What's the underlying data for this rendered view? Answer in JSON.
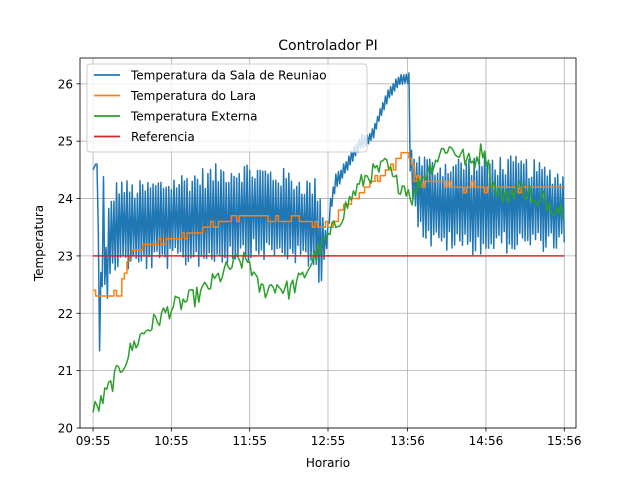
{
  "chart_data": {
    "type": "line",
    "title": "Controlador PI",
    "xlabel": "Horario",
    "ylabel": "Temperatura",
    "xlim": [
      -10,
      370
    ],
    "ylim": [
      20,
      26.45
    ],
    "grid": true,
    "legend_position": "top-left",
    "x_units": "minutes after 09:55",
    "xticks": [
      {
        "value": 0,
        "label": "09:55"
      },
      {
        "value": 60,
        "label": "10:55"
      },
      {
        "value": 120,
        "label": "11:55"
      },
      {
        "value": 180,
        "label": "12:55"
      },
      {
        "value": 241,
        "label": "13:56"
      },
      {
        "value": 301,
        "label": "14:56"
      },
      {
        "value": 361,
        "label": "15:56"
      }
    ],
    "yticks": [
      20,
      21,
      22,
      23,
      24,
      25,
      26
    ],
    "series": [
      {
        "name": "Temperatura da Sala de Reuniao",
        "color": "#1f77b4",
        "style": "oscillating",
        "points": [
          [
            0,
            24.5
          ],
          [
            2,
            24.6
          ],
          [
            3,
            24.6
          ],
          [
            4,
            23.5
          ],
          [
            5,
            21.6
          ],
          [
            8,
            23.8
          ],
          [
            10,
            22.5
          ],
          [
            12,
            23.1
          ],
          [
            15,
            23.4
          ],
          [
            20,
            23.6
          ],
          [
            30,
            23.5
          ],
          [
            60,
            23.6
          ],
          [
            90,
            23.7
          ],
          [
            115,
            23.8
          ],
          [
            150,
            23.7
          ],
          [
            170,
            23.5
          ],
          [
            178,
            23.2
          ],
          [
            180,
            23.5
          ],
          [
            182,
            23.9
          ],
          [
            186,
            24.3
          ],
          [
            190,
            24.4
          ],
          [
            195,
            24.6
          ],
          [
            200,
            24.8
          ],
          [
            206,
            25.0
          ],
          [
            210,
            25.0
          ],
          [
            216,
            25.2
          ],
          [
            220,
            25.5
          ],
          [
            226,
            25.8
          ],
          [
            232,
            26.0
          ],
          [
            238,
            26.1
          ],
          [
            242,
            26.1
          ],
          [
            243,
            24.7
          ],
          [
            246,
            24.3
          ],
          [
            250,
            24.1
          ],
          [
            260,
            23.9
          ],
          [
            300,
            23.9
          ],
          [
            330,
            23.9
          ],
          [
            361,
            23.8
          ]
        ],
        "amplitude": [
          [
            0,
            0
          ],
          [
            4,
            0
          ],
          [
            6,
            0.6
          ],
          [
            12,
            0.8
          ],
          [
            40,
            0.8
          ],
          [
            100,
            0.9
          ],
          [
            160,
            0.8
          ],
          [
            174,
            0.9
          ],
          [
            178,
            0.3
          ],
          [
            180,
            0.15
          ],
          [
            225,
            0.1
          ],
          [
            242,
            0.1
          ],
          [
            246,
            0.6
          ],
          [
            255,
            0.8
          ],
          [
            300,
            0.9
          ],
          [
            340,
            0.8
          ],
          [
            361,
            0.7
          ]
        ],
        "period": 2.0
      },
      {
        "name": "Temperatura do Lara",
        "color": "#ff7f0e",
        "style": "step",
        "points": [
          [
            0,
            22.4
          ],
          [
            5,
            22.35
          ],
          [
            15,
            22.3
          ],
          [
            20,
            22.35
          ],
          [
            25,
            22.8
          ],
          [
            30,
            23.1
          ],
          [
            45,
            23.2
          ],
          [
            60,
            23.3
          ],
          [
            75,
            23.4
          ],
          [
            85,
            23.5
          ],
          [
            100,
            23.6
          ],
          [
            110,
            23.7
          ],
          [
            130,
            23.7
          ],
          [
            135,
            23.6
          ],
          [
            165,
            23.6
          ],
          [
            175,
            23.5
          ],
          [
            185,
            23.6
          ],
          [
            190,
            23.8
          ],
          [
            200,
            24.0
          ],
          [
            210,
            24.2
          ],
          [
            220,
            24.4
          ],
          [
            230,
            24.6
          ],
          [
            238,
            24.8
          ],
          [
            243,
            24.7
          ],
          [
            246,
            24.4
          ],
          [
            250,
            24.3
          ],
          [
            260,
            24.3
          ],
          [
            280,
            24.2
          ],
          [
            300,
            24.2
          ],
          [
            320,
            24.2
          ],
          [
            361,
            24.2
          ]
        ],
        "noise": 0.06,
        "step": 2
      },
      {
        "name": "Temperatura Externa",
        "color": "#2ca02c",
        "style": "noisy",
        "points": [
          [
            0,
            20.3
          ],
          [
            5,
            20.4
          ],
          [
            10,
            20.6
          ],
          [
            20,
            21.0
          ],
          [
            25,
            21.2
          ],
          [
            30,
            21.4
          ],
          [
            40,
            21.7
          ],
          [
            50,
            21.9
          ],
          [
            60,
            22.1
          ],
          [
            70,
            22.2
          ],
          [
            80,
            22.3
          ],
          [
            90,
            22.5
          ],
          [
            100,
            22.7
          ],
          [
            110,
            22.9
          ],
          [
            120,
            22.9
          ],
          [
            125,
            22.5
          ],
          [
            130,
            22.4
          ],
          [
            140,
            22.5
          ],
          [
            150,
            22.4
          ],
          [
            160,
            22.6
          ],
          [
            165,
            22.8
          ],
          [
            170,
            23.0
          ],
          [
            180,
            23.3
          ],
          [
            190,
            23.7
          ],
          [
            200,
            24.1
          ],
          [
            210,
            24.4
          ],
          [
            220,
            24.5
          ],
          [
            225,
            24.6
          ],
          [
            230,
            24.3
          ],
          [
            240,
            24.2
          ],
          [
            245,
            24.0
          ],
          [
            250,
            24.3
          ],
          [
            260,
            24.6
          ],
          [
            270,
            24.9
          ],
          [
            280,
            24.8
          ],
          [
            290,
            24.6
          ],
          [
            300,
            24.9
          ],
          [
            305,
            24.3
          ],
          [
            315,
            24.0
          ],
          [
            325,
            24.2
          ],
          [
            335,
            24.1
          ],
          [
            340,
            23.8
          ],
          [
            345,
            24.0
          ],
          [
            350,
            23.9
          ],
          [
            361,
            23.8
          ]
        ],
        "noise": 0.17,
        "step": 1.5
      },
      {
        "name": "Referencia",
        "color": "#d62728",
        "style": "line",
        "points": [
          [
            0,
            23.0
          ],
          [
            361,
            23.0
          ]
        ]
      }
    ]
  }
}
